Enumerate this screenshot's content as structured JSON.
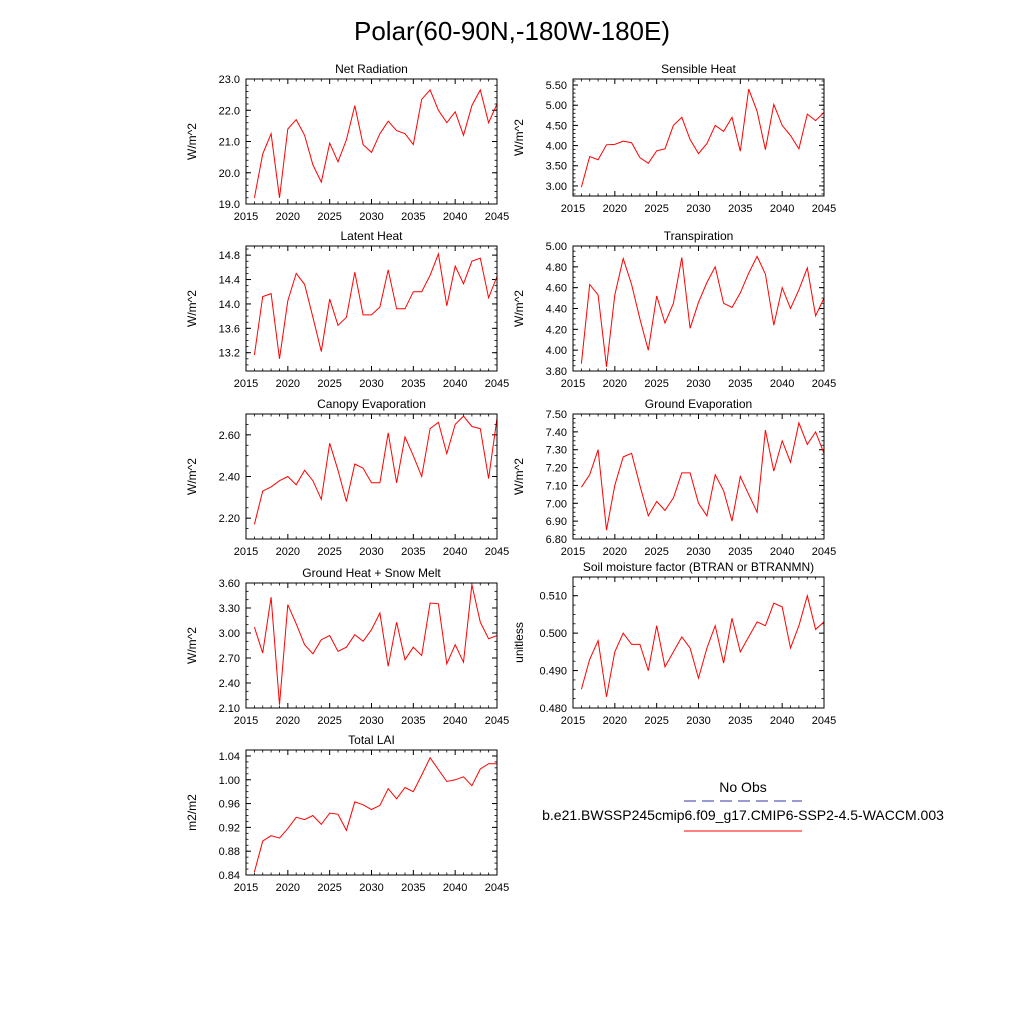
{
  "title": "Polar(60-90N,-180W-180E)",
  "legend": {
    "obs_label": "No Obs",
    "model_label": "b.e21.BWSSP245cmip6.f09_g17.CMIP6-SSP2-4.5-WACCM.003",
    "obs_color": "#3333aa",
    "model_color": "#ff0000"
  },
  "series_color": "#ff0000",
  "chart_data": [
    {
      "type": "line",
      "title": "Net Radiation",
      "ylabel": "W/m^2",
      "xlim": [
        2015,
        2045
      ],
      "ylim": [
        19.0,
        23.0
      ],
      "xticks": [
        2015,
        2020,
        2025,
        2030,
        2035,
        2040,
        2045
      ],
      "yticks": [
        19.0,
        20.0,
        21.0,
        22.0,
        23.0
      ],
      "ytick_labels": [
        "19.0",
        "20.0",
        "21.0",
        "22.0",
        "23.0"
      ],
      "ytick_minor": 0.2,
      "x": [
        2016,
        2017,
        2018,
        2019,
        2020,
        2021,
        2022,
        2023,
        2024,
        2025,
        2026,
        2027,
        2028,
        2029,
        2030,
        2031,
        2032,
        2033,
        2034,
        2035,
        2036,
        2037,
        2038,
        2039,
        2040,
        2041,
        2042,
        2043,
        2044,
        2045
      ],
      "y": [
        19.2,
        20.6,
        21.25,
        19.2,
        21.4,
        21.7,
        21.2,
        20.25,
        19.7,
        20.95,
        20.35,
        21.05,
        22.15,
        20.9,
        20.65,
        21.25,
        21.65,
        21.35,
        21.25,
        20.9,
        22.35,
        22.65,
        22.0,
        21.6,
        21.95,
        21.2,
        22.15,
        22.65,
        21.6,
        22.2
      ]
    },
    {
      "type": "line",
      "title": "Sensible Heat",
      "ylabel": "W/m^2",
      "xlim": [
        2015,
        2045
      ],
      "ylim": [
        2.75,
        5.65
      ],
      "xticks": [
        2015,
        2020,
        2025,
        2030,
        2035,
        2040,
        2045
      ],
      "yticks": [
        3.0,
        3.5,
        4.0,
        4.5,
        5.0,
        5.5
      ],
      "ytick_labels": [
        "3.00",
        "3.50",
        "4.00",
        "4.50",
        "5.00",
        "5.50"
      ],
      "ytick_minor": 0.1,
      "x": [
        2016,
        2017,
        2018,
        2019,
        2020,
        2021,
        2022,
        2023,
        2024,
        2025,
        2026,
        2027,
        2028,
        2029,
        2030,
        2031,
        2032,
        2033,
        2034,
        2035,
        2036,
        2037,
        2038,
        2039,
        2040,
        2041,
        2042,
        2043,
        2044,
        2045
      ],
      "y": [
        2.97,
        3.73,
        3.65,
        4.02,
        4.03,
        4.11,
        4.07,
        3.7,
        3.56,
        3.87,
        3.92,
        4.5,
        4.7,
        4.15,
        3.8,
        4.05,
        4.5,
        4.35,
        4.7,
        3.86,
        5.4,
        4.85,
        3.9,
        5.02,
        4.5,
        4.25,
        3.92,
        4.78,
        4.62,
        4.82
      ]
    },
    {
      "type": "line",
      "title": "Latent Heat",
      "ylabel": "W/m^2",
      "xlim": [
        2015,
        2045
      ],
      "ylim": [
        12.9,
        14.95
      ],
      "xticks": [
        2015,
        2020,
        2025,
        2030,
        2035,
        2040,
        2045
      ],
      "yticks": [
        13.2,
        13.6,
        14.0,
        14.4,
        14.8
      ],
      "ytick_labels": [
        "13.2",
        "13.6",
        "14.0",
        "14.4",
        "14.8"
      ],
      "ytick_minor": 0.1,
      "x": [
        2016,
        2017,
        2018,
        2019,
        2020,
        2021,
        2022,
        2023,
        2024,
        2025,
        2026,
        2027,
        2028,
        2029,
        2030,
        2031,
        2032,
        2033,
        2034,
        2035,
        2036,
        2037,
        2038,
        2039,
        2040,
        2041,
        2042,
        2043,
        2044,
        2045
      ],
      "y": [
        13.16,
        14.12,
        14.17,
        13.1,
        14.05,
        14.5,
        14.32,
        13.78,
        13.22,
        14.08,
        13.65,
        13.78,
        14.52,
        13.82,
        13.82,
        13.95,
        14.56,
        13.92,
        13.92,
        14.2,
        14.2,
        14.47,
        14.82,
        13.97,
        14.62,
        14.33,
        14.7,
        14.75,
        14.1,
        14.45
      ]
    },
    {
      "type": "line",
      "title": "Transpiration",
      "ylabel": "W/m^2",
      "xlim": [
        2015,
        2045
      ],
      "ylim": [
        3.8,
        5.0
      ],
      "xticks": [
        2015,
        2020,
        2025,
        2030,
        2035,
        2040,
        2045
      ],
      "yticks": [
        3.8,
        4.0,
        4.2,
        4.4,
        4.6,
        4.8,
        5.0
      ],
      "ytick_labels": [
        "3.80",
        "4.00",
        "4.20",
        "4.40",
        "4.60",
        "4.80",
        "5.00"
      ],
      "ytick_minor": 0.05,
      "x": [
        2016,
        2017,
        2018,
        2019,
        2020,
        2021,
        2022,
        2023,
        2024,
        2025,
        2026,
        2027,
        2028,
        2029,
        2030,
        2031,
        2032,
        2033,
        2034,
        2035,
        2036,
        2037,
        2038,
        2039,
        2040,
        2041,
        2042,
        2043,
        2044,
        2045
      ],
      "y": [
        3.87,
        4.63,
        4.53,
        3.84,
        4.53,
        4.88,
        4.63,
        4.3,
        4.0,
        4.52,
        4.26,
        4.45,
        4.89,
        4.21,
        4.46,
        4.65,
        4.8,
        4.45,
        4.41,
        4.55,
        4.74,
        4.9,
        4.73,
        4.24,
        4.6,
        4.4,
        4.58,
        4.79,
        4.33,
        4.5
      ]
    },
    {
      "type": "line",
      "title": "Canopy Evaporation",
      "ylabel": "W/m^2",
      "xlim": [
        2015,
        2045
      ],
      "ylim": [
        2.1,
        2.7
      ],
      "xticks": [
        2015,
        2020,
        2025,
        2030,
        2035,
        2040,
        2045
      ],
      "yticks": [
        2.2,
        2.4,
        2.6
      ],
      "ytick_labels": [
        "2.20",
        "2.40",
        "2.60"
      ],
      "ytick_minor": 0.05,
      "x": [
        2016,
        2017,
        2018,
        2019,
        2020,
        2021,
        2022,
        2023,
        2024,
        2025,
        2026,
        2027,
        2028,
        2029,
        2030,
        2031,
        2032,
        2033,
        2034,
        2035,
        2036,
        2037,
        2038,
        2039,
        2040,
        2041,
        2042,
        2043,
        2044,
        2045
      ],
      "y": [
        2.17,
        2.33,
        2.35,
        2.38,
        2.4,
        2.36,
        2.43,
        2.38,
        2.29,
        2.56,
        2.43,
        2.28,
        2.46,
        2.44,
        2.37,
        2.37,
        2.61,
        2.37,
        2.59,
        2.5,
        2.4,
        2.63,
        2.66,
        2.51,
        2.65,
        2.69,
        2.64,
        2.63,
        2.39,
        2.68
      ]
    },
    {
      "type": "line",
      "title": "Ground Evaporation",
      "ylabel": "W/m^2",
      "xlim": [
        2015,
        2045
      ],
      "ylim": [
        6.8,
        7.5
      ],
      "xticks": [
        2015,
        2020,
        2025,
        2030,
        2035,
        2040,
        2045
      ],
      "yticks": [
        6.8,
        6.9,
        7.0,
        7.1,
        7.2,
        7.3,
        7.4,
        7.5
      ],
      "ytick_labels": [
        "6.80",
        "6.90",
        "7.00",
        "7.10",
        "7.20",
        "7.30",
        "7.40",
        "7.50"
      ],
      "ytick_minor": 0.025,
      "x": [
        2016,
        2017,
        2018,
        2019,
        2020,
        2021,
        2022,
        2023,
        2024,
        2025,
        2026,
        2027,
        2028,
        2029,
        2030,
        2031,
        2032,
        2033,
        2034,
        2035,
        2036,
        2037,
        2038,
        2039,
        2040,
        2041,
        2042,
        2043,
        2044,
        2045
      ],
      "y": [
        7.09,
        7.16,
        7.3,
        6.85,
        7.1,
        7.26,
        7.28,
        7.1,
        6.93,
        7.01,
        6.96,
        7.03,
        7.17,
        7.17,
        7.0,
        6.93,
        7.16,
        7.07,
        6.9,
        7.15,
        7.05,
        6.95,
        7.41,
        7.18,
        7.35,
        7.23,
        7.45,
        7.33,
        7.4,
        7.28
      ]
    },
    {
      "type": "line",
      "title": "Ground Heat + Snow Melt",
      "ylabel": "W/m^2",
      "xlim": [
        2015,
        2045
      ],
      "ylim": [
        2.1,
        3.6
      ],
      "xticks": [
        2015,
        2020,
        2025,
        2030,
        2035,
        2040,
        2045
      ],
      "yticks": [
        2.1,
        2.4,
        2.7,
        3.0,
        3.3,
        3.6
      ],
      "ytick_labels": [
        "2.10",
        "2.40",
        "2.70",
        "3.00",
        "3.30",
        "3.60"
      ],
      "ytick_minor": 0.1,
      "x": [
        2016,
        2017,
        2018,
        2019,
        2020,
        2021,
        2022,
        2023,
        2024,
        2025,
        2026,
        2027,
        2028,
        2029,
        2030,
        2031,
        2032,
        2033,
        2034,
        2035,
        2036,
        2037,
        2038,
        2039,
        2040,
        2041,
        2042,
        2043,
        2044,
        2045
      ],
      "y": [
        3.07,
        2.76,
        3.43,
        2.14,
        3.34,
        3.11,
        2.86,
        2.75,
        2.92,
        2.97,
        2.78,
        2.83,
        2.98,
        2.9,
        3.04,
        3.24,
        2.6,
        3.13,
        2.68,
        2.83,
        2.73,
        3.36,
        3.35,
        2.63,
        2.86,
        2.65,
        3.58,
        3.13,
        2.93,
        2.97
      ]
    },
    {
      "type": "line",
      "title": "Soil moisture factor (BTRAN or BTRANMN)",
      "ylabel": "unitless",
      "xlim": [
        2015,
        2045
      ],
      "ylim": [
        0.48,
        0.515
      ],
      "xticks": [
        2015,
        2020,
        2025,
        2030,
        2035,
        2040,
        2045
      ],
      "yticks": [
        0.48,
        0.49,
        0.5,
        0.51
      ],
      "ytick_labels": [
        "0.480",
        "0.490",
        "0.500",
        "0.510"
      ],
      "ytick_minor": 0.0025,
      "x": [
        2016,
        2017,
        2018,
        2019,
        2020,
        2021,
        2022,
        2023,
        2024,
        2025,
        2026,
        2027,
        2028,
        2029,
        2030,
        2031,
        2032,
        2033,
        2034,
        2035,
        2036,
        2037,
        2038,
        2039,
        2040,
        2041,
        2042,
        2043,
        2044,
        2045
      ],
      "y": [
        0.485,
        0.493,
        0.498,
        0.483,
        0.495,
        0.5,
        0.497,
        0.497,
        0.49,
        0.502,
        0.491,
        0.495,
        0.499,
        0.496,
        0.488,
        0.496,
        0.502,
        0.492,
        0.504,
        0.495,
        0.499,
        0.503,
        0.502,
        0.508,
        0.507,
        0.496,
        0.502,
        0.51,
        0.501,
        0.503
      ]
    },
    {
      "type": "line",
      "title": "Total LAI",
      "ylabel": "m2/m2",
      "xlim": [
        2015,
        2045
      ],
      "ylim": [
        0.84,
        1.05
      ],
      "xticks": [
        2015,
        2020,
        2025,
        2030,
        2035,
        2040,
        2045
      ],
      "yticks": [
        0.84,
        0.88,
        0.92,
        0.96,
        1.0,
        1.04
      ],
      "ytick_labels": [
        "0.84",
        "0.88",
        "0.92",
        "0.96",
        "1.00",
        "1.04"
      ],
      "ytick_minor": 0.01,
      "x": [
        2016,
        2017,
        2018,
        2019,
        2020,
        2021,
        2022,
        2023,
        2024,
        2025,
        2026,
        2027,
        2028,
        2029,
        2030,
        2031,
        2032,
        2033,
        2034,
        2035,
        2036,
        2037,
        2038,
        2039,
        2040,
        2041,
        2042,
        2043,
        2044,
        2045
      ],
      "y": [
        0.845,
        0.897,
        0.906,
        0.902,
        0.918,
        0.937,
        0.933,
        0.94,
        0.925,
        0.944,
        0.942,
        0.915,
        0.963,
        0.958,
        0.95,
        0.957,
        0.985,
        0.968,
        0.987,
        0.98,
        1.008,
        1.037,
        1.017,
        0.997,
        1.0,
        1.005,
        0.99,
        1.018,
        1.027,
        1.027
      ]
    }
  ]
}
